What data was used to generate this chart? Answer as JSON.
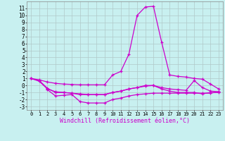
{
  "background_color": "#c8f0f0",
  "grid_color": "#b0c8c8",
  "line_color": "#cc00cc",
  "marker": "+",
  "xlabel": "Windchill (Refroidissement éolien,°C)",
  "xlabel_fontsize": 6.0,
  "ytick_fontsize": 5.5,
  "xtick_fontsize": 5.0,
  "xlim": [
    -0.5,
    23.5
  ],
  "ylim": [
    -3.5,
    12.0
  ],
  "yticks": [
    -3,
    -2,
    -1,
    0,
    1,
    2,
    3,
    4,
    5,
    6,
    7,
    8,
    9,
    10,
    11
  ],
  "xticks": [
    0,
    1,
    2,
    3,
    4,
    5,
    6,
    7,
    8,
    9,
    10,
    11,
    12,
    13,
    14,
    15,
    16,
    17,
    18,
    19,
    20,
    21,
    22,
    23
  ],
  "lines": [
    {
      "x": [
        0,
        1,
        2,
        3,
        4,
        5,
        6,
        7,
        8,
        9,
        10,
        11,
        12,
        13,
        14,
        15,
        16,
        17,
        18,
        19,
        20,
        21,
        22,
        23
      ],
      "y": [
        1.0,
        0.8,
        0.5,
        0.3,
        0.2,
        0.15,
        0.1,
        0.1,
        0.1,
        0.1,
        1.5,
        2.0,
        4.5,
        10.0,
        11.2,
        11.3,
        6.2,
        1.5,
        1.3,
        1.2,
        1.0,
        0.9,
        0.2,
        -0.5
      ]
    },
    {
      "x": [
        0,
        1,
        2,
        3,
        4,
        5,
        6,
        7,
        8,
        9,
        10,
        11,
        12,
        13,
        14,
        15,
        16,
        17,
        18,
        19,
        20,
        21,
        22,
        23
      ],
      "y": [
        1.0,
        0.6,
        -0.5,
        -0.9,
        -1.0,
        -1.1,
        -1.2,
        -1.3,
        -1.3,
        -1.3,
        -1.0,
        -0.8,
        -0.5,
        -0.3,
        -0.1,
        0.0,
        -0.3,
        -0.5,
        -0.6,
        -0.7,
        0.7,
        -0.3,
        -0.8,
        -0.9
      ]
    },
    {
      "x": [
        2,
        3,
        4,
        5,
        6,
        7,
        8,
        9,
        10,
        11,
        12,
        13,
        14,
        15,
        16,
        17,
        18,
        19,
        20,
        21,
        22,
        23
      ],
      "y": [
        -0.6,
        -1.5,
        -1.4,
        -1.3,
        -2.3,
        -2.5,
        -2.5,
        -2.5,
        -2.0,
        -1.8,
        -1.5,
        -1.3,
        -1.2,
        -1.1,
        -1.1,
        -1.1,
        -1.1,
        -1.1,
        -1.1,
        -1.1,
        -1.1,
        -0.9
      ]
    },
    {
      "x": [
        0,
        1,
        2,
        3,
        4,
        5,
        6,
        7,
        8,
        9,
        10,
        11,
        12,
        13,
        14,
        15,
        16,
        17,
        18,
        19,
        20,
        21,
        22,
        23
      ],
      "y": [
        1.0,
        0.7,
        -0.4,
        -1.0,
        -1.0,
        -1.1,
        -1.3,
        -1.3,
        -1.3,
        -1.3,
        -1.0,
        -0.8,
        -0.5,
        -0.3,
        0.0,
        0.0,
        -0.5,
        -0.8,
        -1.0,
        -1.0,
        -1.0,
        -1.2,
        -1.0,
        -1.0
      ]
    }
  ]
}
